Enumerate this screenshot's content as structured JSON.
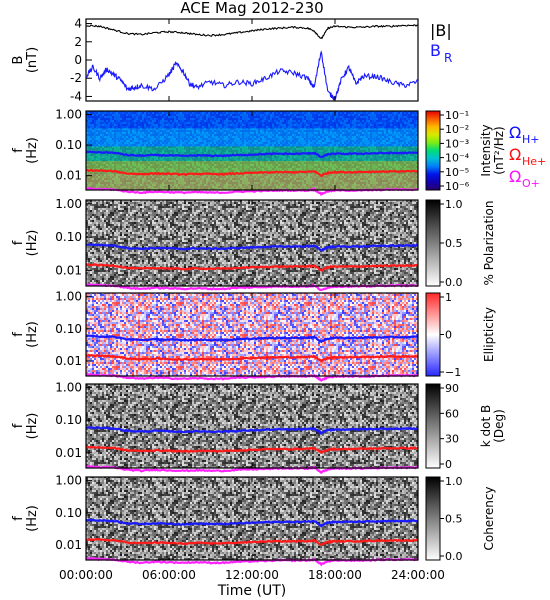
{
  "chart_data": {
    "type": "spectrogram-panels",
    "title": "ACE Mag 2012-230",
    "xlabel": "Time (UT)",
    "x_ticks": [
      "00:00:00",
      "06:00:00",
      "12:00:00",
      "18:00:00",
      "24:00:00"
    ],
    "xlim_hours": [
      0,
      24
    ],
    "freq_ticks": [
      "1.00",
      "0.10",
      "0.01"
    ],
    "gyro_legend": [
      {
        "label": "Ω",
        "sub": "H+",
        "color": "#1010ff"
      },
      {
        "label": "Ω",
        "sub": "He+",
        "color": "#ff1010"
      },
      {
        "label": "Ω",
        "sub": "O+",
        "color": "#ff10ff"
      }
    ],
    "gyro_freq_hz": {
      "hours": [
        0,
        1,
        2,
        3,
        4,
        5,
        6,
        7,
        8,
        9,
        10,
        11,
        12,
        13,
        14,
        15,
        16,
        16.5,
        17,
        17.5,
        18,
        19,
        20,
        21,
        22,
        23,
        24
      ],
      "H+": [
        0.06,
        0.058,
        0.056,
        0.047,
        0.045,
        0.047,
        0.046,
        0.044,
        0.046,
        0.045,
        0.045,
        0.047,
        0.049,
        0.051,
        0.052,
        0.052,
        0.053,
        0.055,
        0.04,
        0.05,
        0.052,
        0.052,
        0.053,
        0.054,
        0.055,
        0.055,
        0.056
      ],
      "He+": [
        0.015,
        0.0145,
        0.014,
        0.0118,
        0.0113,
        0.0118,
        0.0115,
        0.011,
        0.0115,
        0.0113,
        0.0113,
        0.0118,
        0.0123,
        0.0128,
        0.013,
        0.013,
        0.0133,
        0.0138,
        0.01,
        0.0125,
        0.013,
        0.013,
        0.0133,
        0.0135,
        0.0138,
        0.0138,
        0.014
      ],
      "O+": [
        0.0038,
        0.0036,
        0.0035,
        0.003,
        0.0028,
        0.003,
        0.0029,
        0.0028,
        0.0029,
        0.0028,
        0.0028,
        0.003,
        0.0031,
        0.0032,
        0.0033,
        0.0033,
        0.0033,
        0.0035,
        0.0025,
        0.0031,
        0.0033,
        0.0033,
        0.0033,
        0.0034,
        0.0035,
        0.0035,
        0.0035
      ]
    },
    "panels": [
      {
        "type": "line",
        "ylabel": "B",
        "yunit": "(nT)",
        "yticks": [
          "4",
          "2",
          "0",
          "-2",
          "-4"
        ],
        "ylim": [
          -4.5,
          4.5
        ],
        "legend": [
          {
            "label": "|B|",
            "color": "#000000"
          },
          {
            "label": "B",
            "sub": "R",
            "color": "#1a1aff"
          }
        ],
        "series": [
          {
            "name": "|B|",
            "color": "#000000",
            "x": [
              0,
              1,
              2,
              3,
              4,
              5,
              6,
              7,
              8,
              9,
              10,
              11,
              12,
              13,
              14,
              15,
              16,
              16.5,
              17,
              17.5,
              18,
              19,
              20,
              21,
              22,
              23,
              24
            ],
            "y": [
              3.8,
              3.7,
              3.3,
              2.9,
              2.8,
              3.0,
              3.1,
              3.0,
              2.8,
              2.7,
              2.8,
              3.0,
              3.2,
              3.4,
              3.5,
              3.6,
              3.5,
              3.2,
              2.3,
              3.5,
              3.7,
              3.6,
              3.6,
              3.7,
              3.7,
              3.8,
              3.8
            ]
          },
          {
            "name": "B_R",
            "color": "#1a1aff",
            "x": [
              0,
              0.5,
              1,
              1.5,
              2,
              2.5,
              3,
              3.5,
              4,
              5,
              6,
              6.5,
              7,
              7.5,
              8,
              9,
              10,
              11,
              12,
              13,
              14,
              15,
              16,
              16.5,
              17,
              17.5,
              18,
              18.5,
              19,
              19.5,
              20,
              21,
              22,
              23,
              24
            ],
            "y": [
              -1.8,
              -0.8,
              -2.0,
              -1.0,
              -1.6,
              -2.2,
              -3.2,
              -3.0,
              -2.8,
              -3.2,
              -1.6,
              -0.4,
              -1.2,
              -2.6,
              -3.0,
              -2.4,
              -2.8,
              -2.4,
              -2.6,
              -2.0,
              -1.2,
              -1.4,
              -2.0,
              -3.0,
              1.0,
              -3.6,
              -4.2,
              -2.0,
              -0.8,
              -2.6,
              -1.8,
              -1.8,
              -2.4,
              -2.8,
              -2.4
            ]
          }
        ]
      },
      {
        "type": "heatmap",
        "ylabel": "f",
        "yunit": "(Hz)",
        "colorbar_label": "Intensity",
        "colorbar_unit": "(nT²/Hz)",
        "colorbar_ticks": [
          "10⁻¹",
          "10⁻²",
          "10⁻³",
          "10⁻⁴",
          "10⁻⁵",
          "10⁻⁶"
        ],
        "colormap": "rainbow",
        "show_legend": true
      },
      {
        "type": "heatmap",
        "ylabel": "f",
        "yunit": "(Hz)",
        "colorbar_label": "% Polarization",
        "colorbar_ticks": [
          "1.0",
          "0.5",
          "0.0"
        ],
        "colormap": "gray"
      },
      {
        "type": "heatmap",
        "ylabel": "f",
        "yunit": "(Hz)",
        "colorbar_label": "Ellipticity",
        "colorbar_ticks": [
          "1",
          "0",
          "−1"
        ],
        "colormap": "bwr"
      },
      {
        "type": "heatmap",
        "ylabel": "f",
        "yunit": "(Hz)",
        "colorbar_label": "k dot B",
        "colorbar_unit": "(Deg)",
        "colorbar_ticks": [
          "90",
          "60",
          "30",
          "0"
        ],
        "colormap": "gray"
      },
      {
        "type": "heatmap",
        "ylabel": "f",
        "yunit": "(Hz)",
        "colorbar_label": "Coherency",
        "colorbar_ticks": [
          "1.0",
          "0.5",
          "0.0"
        ],
        "colormap": "gray"
      }
    ]
  }
}
